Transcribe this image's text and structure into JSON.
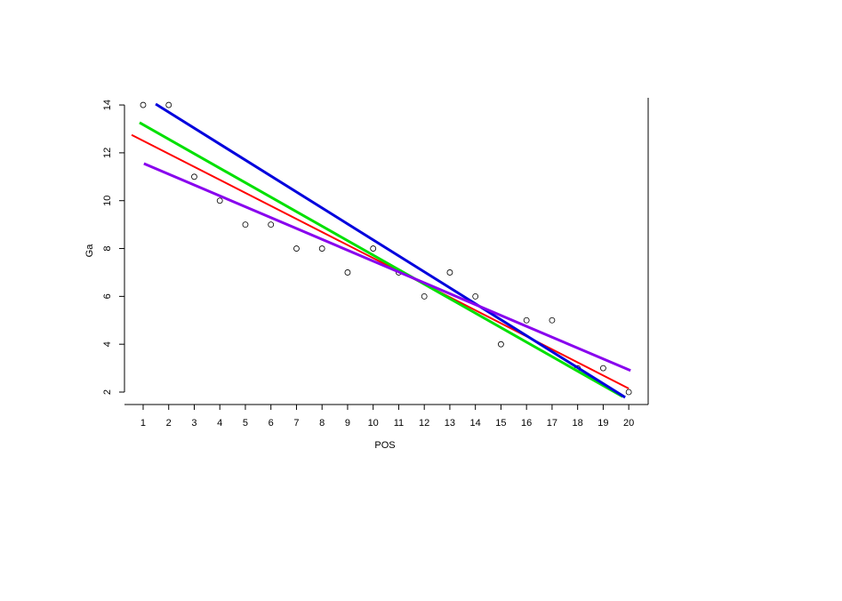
{
  "chart_data": {
    "type": "scatter",
    "xlabel": "POS",
    "ylabel": "Ga",
    "x": [
      1,
      2,
      3,
      4,
      5,
      6,
      7,
      8,
      9,
      10,
      11,
      12,
      13,
      14,
      15,
      16,
      17,
      18,
      19,
      20
    ],
    "values": [
      14,
      14,
      11,
      10,
      9,
      9,
      8,
      8,
      7,
      8,
      7,
      6,
      7,
      6,
      4,
      5,
      5,
      3,
      3,
      2
    ],
    "color": "#000000",
    "lines": [
      {
        "color": "#ff0000",
        "width": 2,
        "x": [
          0.55,
          20
        ],
        "y": [
          12.75,
          2.15
        ]
      },
      {
        "color": "#00e000",
        "width": 3,
        "x": [
          0.86,
          19.76
        ],
        "y": [
          13.26,
          1.81
        ]
      },
      {
        "color": "#0000dd",
        "width": 3,
        "x": [
          1.49,
          19.86
        ],
        "y": [
          14.04,
          1.78
        ]
      },
      {
        "color": "#8800ee",
        "width": 3,
        "x": [
          1.03,
          20.07
        ],
        "y": [
          11.55,
          2.9
        ]
      }
    ],
    "xlim": [
      0.27,
      20.76
    ],
    "ylim": [
      1.48,
      14.3
    ],
    "xticks": [
      1,
      2,
      3,
      4,
      5,
      6,
      7,
      8,
      9,
      10,
      11,
      12,
      13,
      14,
      15,
      16,
      17,
      18,
      19,
      20
    ],
    "yticks": [
      2,
      4,
      6,
      8,
      10,
      12,
      14
    ]
  }
}
